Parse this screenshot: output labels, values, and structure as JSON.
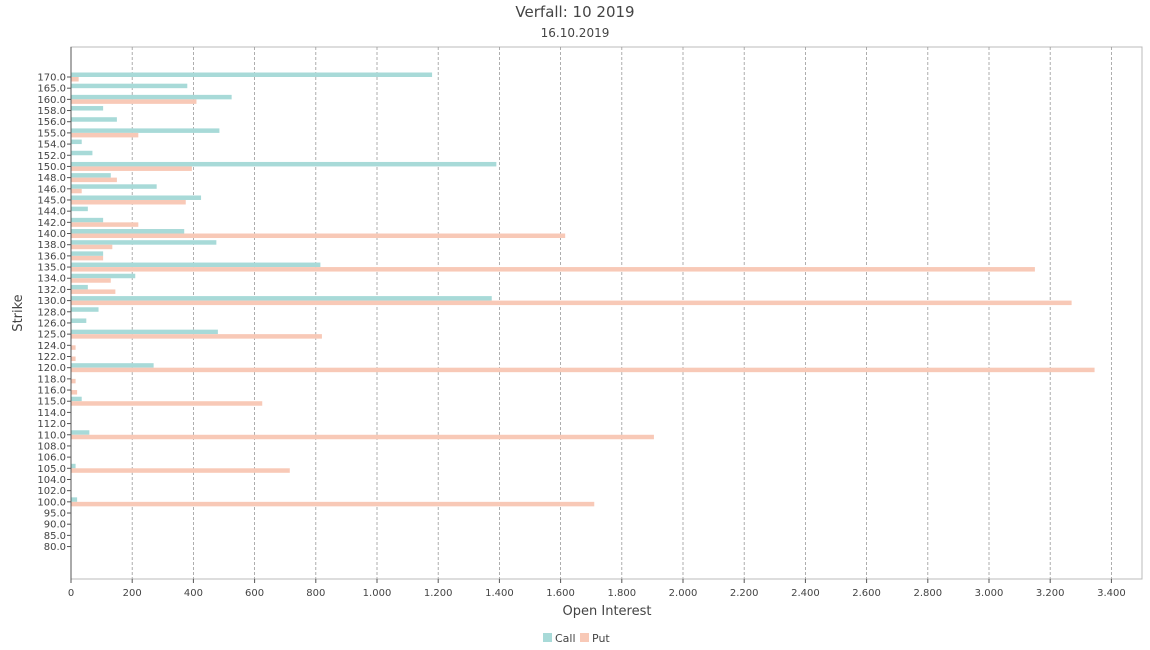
{
  "chart_data": {
    "type": "bar",
    "orientation": "horizontal",
    "title": "Verfall: 10 2019",
    "subtitle": "16.10.2019",
    "xlabel": "Open Interest",
    "ylabel": "Strike",
    "xlim": [
      0,
      3500
    ],
    "xticks": [
      0,
      200,
      400,
      600,
      800,
      1000,
      1200,
      1400,
      1600,
      1800,
      2000,
      2200,
      2400,
      2600,
      2800,
      3000,
      3200,
      3400
    ],
    "xtick_labels": [
      "0",
      "200",
      "400",
      "600",
      "800",
      "1.000",
      "1.200",
      "1.400",
      "1.600",
      "1.800",
      "2.000",
      "2.200",
      "2.400",
      "2.600",
      "2.800",
      "3.000",
      "3.200",
      "3.400"
    ],
    "grid": "vertical-dashed",
    "legend_position": "bottom-center",
    "categories": [
      "170.0",
      "165.0",
      "160.0",
      "158.0",
      "156.0",
      "155.0",
      "154.0",
      "152.0",
      "150.0",
      "148.0",
      "146.0",
      "145.0",
      "144.0",
      "142.0",
      "140.0",
      "138.0",
      "136.0",
      "135.0",
      "134.0",
      "132.0",
      "130.0",
      "128.0",
      "126.0",
      "125.0",
      "124.0",
      "122.0",
      "120.0",
      "118.0",
      "116.0",
      "115.0",
      "114.0",
      "112.0",
      "110.0",
      "108.0",
      "106.0",
      "105.0",
      "104.0",
      "102.0",
      "100.0",
      "95.0",
      "90.0",
      "85.0",
      "80.0"
    ],
    "series": [
      {
        "name": "Call",
        "color": "#a8dad8",
        "values": [
          1180,
          380,
          525,
          105,
          150,
          485,
          35,
          70,
          1390,
          130,
          280,
          425,
          55,
          105,
          370,
          475,
          105,
          815,
          210,
          55,
          1375,
          90,
          50,
          480,
          0,
          0,
          270,
          0,
          0,
          35,
          0,
          0,
          60,
          0,
          0,
          15,
          0,
          0,
          20,
          0,
          0,
          0,
          0
        ]
      },
      {
        "name": "Put",
        "color": "#f8c9b7",
        "values": [
          25,
          0,
          410,
          0,
          0,
          220,
          0,
          0,
          395,
          150,
          35,
          375,
          0,
          220,
          1615,
          135,
          105,
          3150,
          130,
          145,
          3270,
          0,
          0,
          820,
          15,
          15,
          3345,
          15,
          20,
          625,
          0,
          0,
          1905,
          0,
          0,
          715,
          0,
          0,
          1710,
          0,
          0,
          0,
          0
        ]
      }
    ]
  }
}
